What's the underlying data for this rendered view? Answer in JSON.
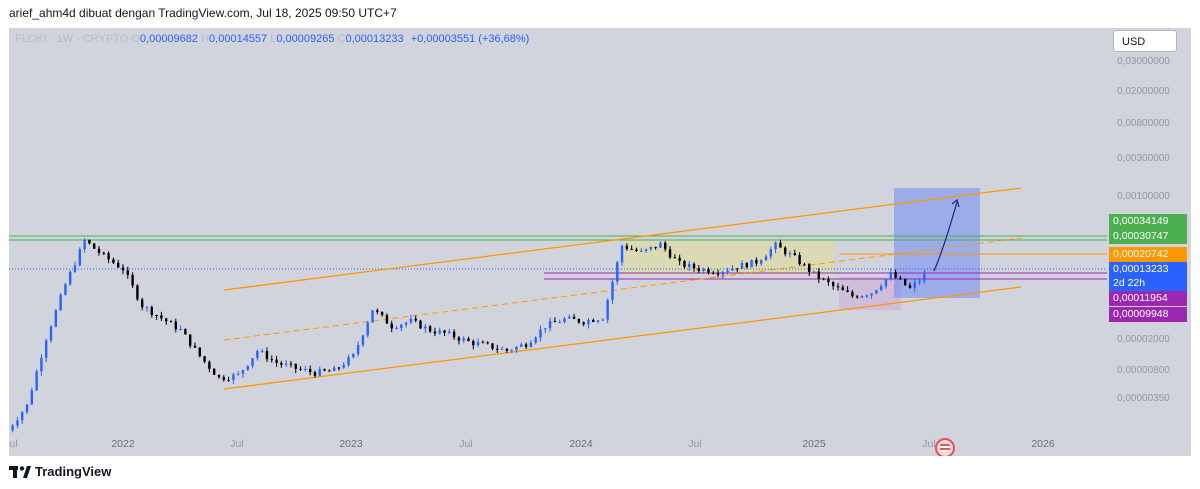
{
  "header": {
    "text": "arief_ahm4d dibuat dengan TradingView.com, Jul 18, 2025 09:50 UTC+7"
  },
  "legend": {
    "symbol": "FLOKI · 1W · CRYPTO",
    "o_label": "O",
    "o_value": "0,00009682",
    "h_label": "H",
    "h_value": "0,00014557",
    "l_label": "L",
    "l_value": "0,00009265",
    "c_label": "C",
    "c_value": "0,00013233",
    "change": "+0,00003551 (+36,68%)"
  },
  "currency_button": "USD",
  "price_labels": [
    {
      "text": "0,00034149",
      "color": "#4caf50"
    },
    {
      "text": "0,00030747",
      "color": "#4caf50"
    },
    {
      "text": "0,00020742",
      "color": "#ff9800"
    },
    {
      "text": "0,00013233",
      "color": "#2962ff"
    },
    {
      "text": "0,00011954",
      "color": "#9c27b0"
    },
    {
      "text": "0,00009948",
      "color": "#9c27b0"
    }
  ],
  "countdown": "2d 22h",
  "footer_logo": "TradingView",
  "colors": {
    "up": "#2962ff",
    "down": "#000000",
    "channel": "#ff9800",
    "green_line": "#4caf50",
    "purple_line": "#9c27b0",
    "blue_line": "#2962ff",
    "projection": "#6c8cff"
  },
  "chart_data": {
    "type": "candlestick",
    "symbol": "FLOKI",
    "timeframe": "1W",
    "y_scale": "log",
    "ytick_labels": [
      "0,03000000",
      "0,02000000",
      "0,00800000",
      "0,00300000",
      "0,00100000",
      "0,00002000",
      "0,00000800",
      "0,00000350"
    ],
    "xtick_labels": [
      "Jul",
      "2022",
      "Jul",
      "2023",
      "Jul",
      "2024",
      "Jul",
      "2025",
      "Jul",
      "2026"
    ],
    "close_path": [
      [
        "2021-07",
        1.5e-06
      ],
      [
        "2021-08",
        3e-06
      ],
      [
        "2021-09",
        2e-05
      ],
      [
        "2021-10",
        9e-05
      ],
      [
        "2021-11",
        0.00031
      ],
      [
        "2021-12",
        0.0002
      ],
      [
        "2022-01",
        0.00014
      ],
      [
        "2022-02",
        5e-05
      ],
      [
        "2022-03",
        3.5e-05
      ],
      [
        "2022-04",
        2.5e-05
      ],
      [
        "2022-05",
        1.2e-05
      ],
      [
        "2022-06",
        6.5e-06
      ],
      [
        "2022-07",
        7e-06
      ],
      [
        "2022-08",
        1.4e-05
      ],
      [
        "2022-09",
        1e-05
      ],
      [
        "2022-10",
        8.5e-06
      ],
      [
        "2022-11",
        7.5e-06
      ],
      [
        "2022-12",
        8e-06
      ],
      [
        "2023-01",
        1.2e-05
      ],
      [
        "2023-02",
        4.5e-05
      ],
      [
        "2023-03",
        2.8e-05
      ],
      [
        "2023-04",
        3.2e-05
      ],
      [
        "2023-05",
        2.5e-05
      ],
      [
        "2023-06",
        2.2e-05
      ],
      [
        "2023-07",
        1.8e-05
      ],
      [
        "2023-08",
        1.6e-05
      ],
      [
        "2023-09",
        1.4e-05
      ],
      [
        "2023-10",
        1.7e-05
      ],
      [
        "2023-11",
        2.8e-05
      ],
      [
        "2023-12",
        3.4e-05
      ],
      [
        "2024-01",
        3.2e-05
      ],
      [
        "2024-02",
        3.6e-05
      ],
      [
        "2024-03",
        0.00027
      ],
      [
        "2024-04",
        0.00022
      ],
      [
        "2024-05",
        0.00028
      ],
      [
        "2024-06",
        0.00016
      ],
      [
        "2024-07",
        0.00014
      ],
      [
        "2024-08",
        0.00013
      ],
      [
        "2024-09",
        0.00015
      ],
      [
        "2024-10",
        0.00017
      ],
      [
        "2024-11",
        0.00027
      ],
      [
        "2024-12",
        0.00019
      ],
      [
        "2025-01",
        0.00012
      ],
      [
        "2025-02",
        8.5e-05
      ],
      [
        "2025-03",
        6.5e-05
      ],
      [
        "2025-04",
        7.2e-05
      ],
      [
        "2025-05",
        0.00012
      ],
      [
        "2025-06",
        8e-05
      ],
      [
        "2025-07",
        0.00013233
      ]
    ],
    "horizontal_levels": [
      {
        "price": "0,00034149",
        "color": "green"
      },
      {
        "price": "0,00030747",
        "color": "green"
      },
      {
        "price": "0,00020742",
        "color": "orange"
      },
      {
        "price": "0,00013233",
        "color": "blue"
      },
      {
        "price": "0,00011954",
        "color": "purple"
      },
      {
        "price": "0,00009948",
        "color": "purple"
      }
    ],
    "ascending_channel": {
      "color": "orange",
      "lines": [
        "upper",
        "middle (dashed)",
        "lower"
      ]
    },
    "projection": "upward arrow toward ~0,00100000 inside long-position box",
    "grid": false
  }
}
